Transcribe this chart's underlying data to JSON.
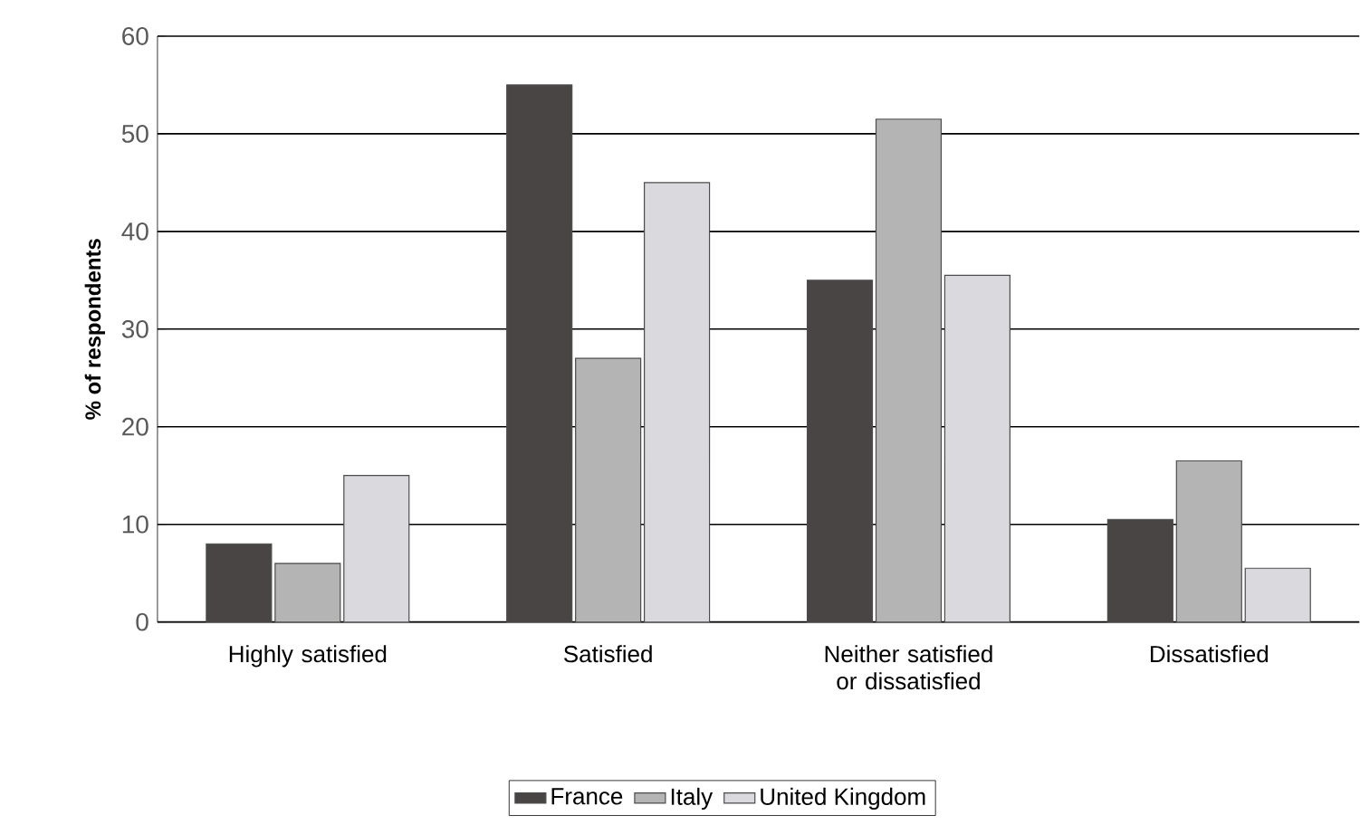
{
  "chart_data": {
    "type": "bar",
    "ylabel": "% of respondents",
    "categories": [
      "Highly satisfied",
      "Satisfied",
      "Neither satisfied or dissatisfied",
      "Dissatisfied"
    ],
    "series": [
      {
        "name": "France",
        "color": "#4a4545",
        "values": [
          8,
          55,
          35,
          10.5
        ]
      },
      {
        "name": "Italy",
        "color": "#b4b4b4",
        "values": [
          6,
          27,
          51.5,
          16.5
        ]
      },
      {
        "name": "United Kingdom",
        "color": "#d9d9de",
        "values": [
          15,
          45,
          35.5,
          5.5
        ]
      }
    ],
    "ylim": [
      0,
      60
    ],
    "yticks": [
      0,
      10,
      20,
      30,
      40,
      50,
      60
    ],
    "grid": "y",
    "legend": "bottom"
  }
}
